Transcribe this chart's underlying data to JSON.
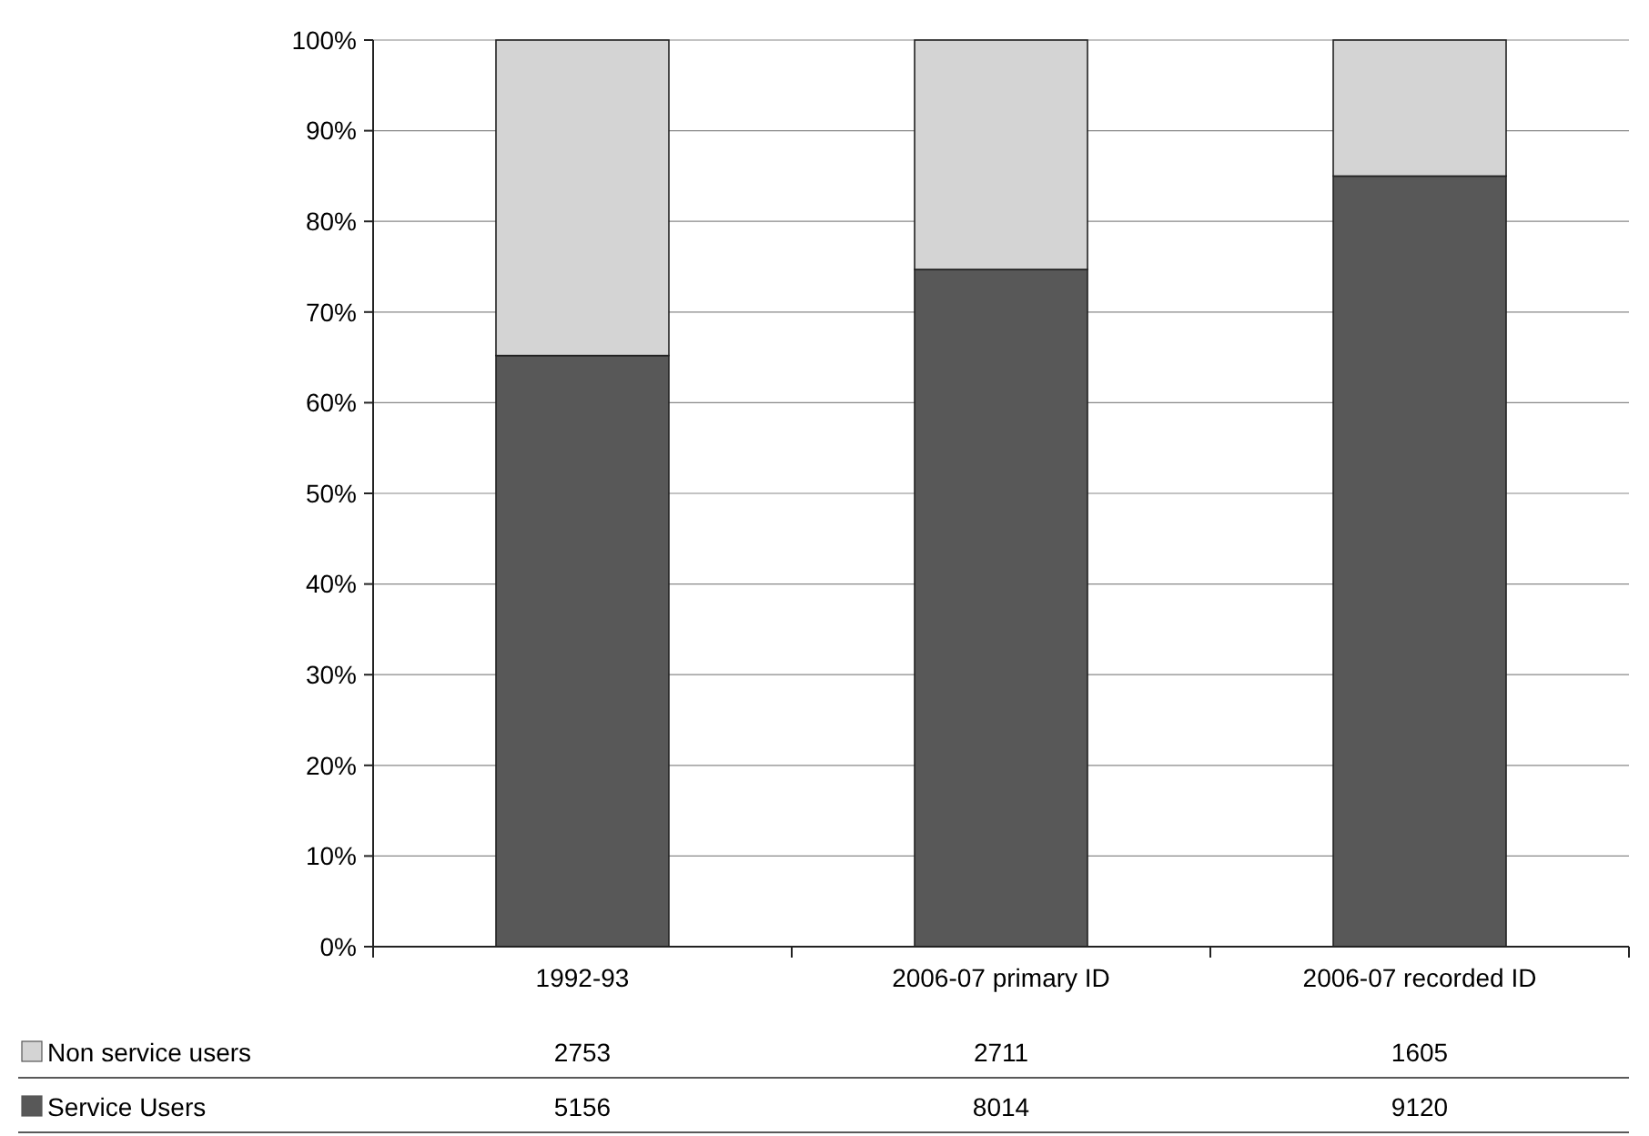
{
  "chart_data": {
    "type": "bar",
    "stacked": true,
    "categories": [
      "1992-93",
      "2006-07 primary ID",
      "2006-07 recorded ID"
    ],
    "series": [
      {
        "name": "Service Users",
        "color": "#585858",
        "values": [
          65.2,
          74.7,
          85.0
        ]
      },
      {
        "name": "Non service users",
        "color": "#d4d4d4",
        "values": [
          34.8,
          25.3,
          15.0
        ]
      }
    ],
    "annotations": [
      "2753",
      "2711",
      "1605",
      "5156",
      "8014",
      "9120"
    ],
    "ylim": [
      0,
      100
    ],
    "yticks": [
      {
        "value": 0,
        "label": "0%"
      },
      {
        "value": 10,
        "label": "10%"
      },
      {
        "value": 20,
        "label": "20%"
      },
      {
        "value": 30,
        "label": "30%"
      },
      {
        "value": 40,
        "label": "40%"
      },
      {
        "value": 50,
        "label": "50%"
      },
      {
        "value": 60,
        "label": "60%"
      },
      {
        "value": 70,
        "label": "70%"
      },
      {
        "value": 80,
        "label": "80%"
      },
      {
        "value": 90,
        "label": "90%"
      },
      {
        "value": 100,
        "label": "100%"
      }
    ],
    "grid": "y",
    "legend": "bottom"
  }
}
